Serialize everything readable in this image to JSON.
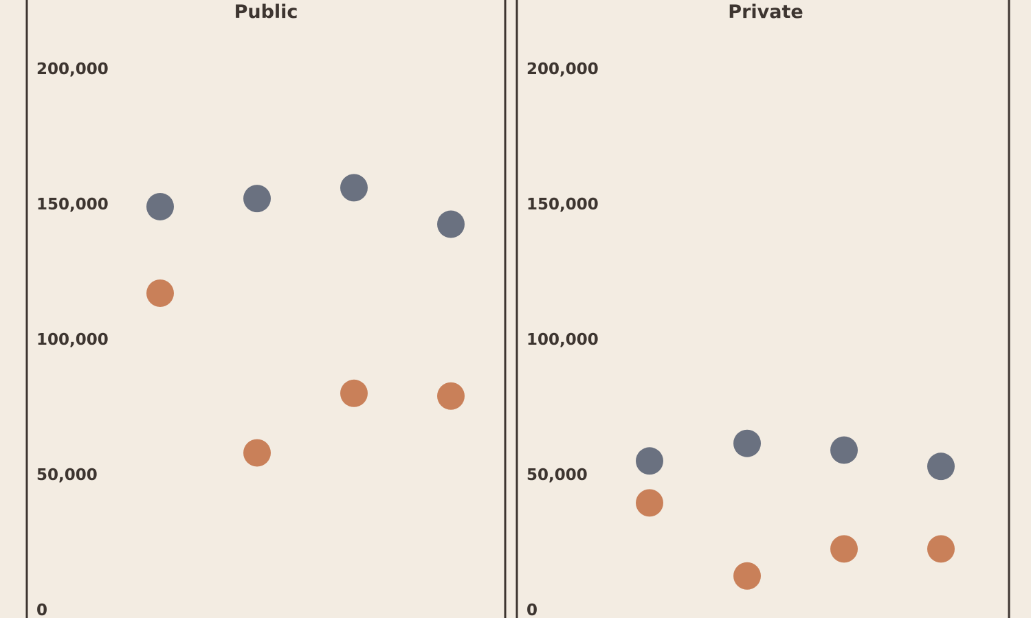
{
  "colors": {
    "background": "#f3ece2",
    "frame": "#3d3530",
    "text": "#3d3530",
    "series_gray": "#6a7180",
    "series_orange": "#c98059"
  },
  "chart_data": [
    {
      "type": "scatter",
      "title": "Public",
      "ylim": [
        0,
        200000
      ],
      "yticks": [
        {
          "value": 200000,
          "label": "200,000"
        },
        {
          "value": 150000,
          "label": "150,000"
        },
        {
          "value": 100000,
          "label": "100,000"
        },
        {
          "value": 50000,
          "label": "50,000"
        },
        {
          "value": 0,
          "label": "0"
        }
      ],
      "grid": false,
      "categories_count": 4,
      "series": [
        {
          "color": "#6a7180",
          "values": [
            149000,
            152000,
            156000,
            142500
          ]
        },
        {
          "color": "#c98059",
          "values": [
            117000,
            58000,
            80000,
            79000
          ]
        }
      ]
    },
    {
      "type": "scatter",
      "title": "Private",
      "ylim": [
        0,
        200000
      ],
      "yticks": [
        {
          "value": 200000,
          "label": "200,000"
        },
        {
          "value": 150000,
          "label": "150,000"
        },
        {
          "value": 100000,
          "label": "100,000"
        },
        {
          "value": 50000,
          "label": "50,000"
        },
        {
          "value": 0,
          "label": "0"
        }
      ],
      "grid": false,
      "categories_count": 4,
      "series": [
        {
          "color": "#6a7180",
          "values": [
            55000,
            61500,
            59000,
            53000
          ]
        },
        {
          "color": "#c98059",
          "values": [
            39500,
            12500,
            22500,
            22500
          ]
        }
      ]
    }
  ]
}
